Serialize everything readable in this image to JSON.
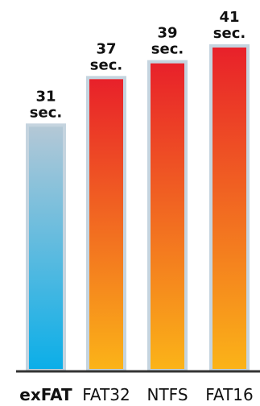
{
  "chart_data": {
    "type": "bar",
    "title": "",
    "xlabel": "",
    "ylabel": "",
    "unit": "sec.",
    "categories": [
      "exFAT",
      "FAT32",
      "NTFS",
      "FAT16"
    ],
    "values": [
      31,
      37,
      39,
      41
    ],
    "value_labels": [
      "31",
      "37",
      "39",
      "41"
    ],
    "highlight_category": "exFAT",
    "ylim": [
      0,
      41
    ],
    "grid": false,
    "legend": "none",
    "colors": {
      "exfat_top": "#b5c8d6",
      "exfat_bottom": "#0aaee8",
      "others_top": "#e8202a",
      "others_bottom": "#fbb418",
      "bar_border": "#c5d4df",
      "baseline": "#333333",
      "text": "#111111"
    }
  }
}
